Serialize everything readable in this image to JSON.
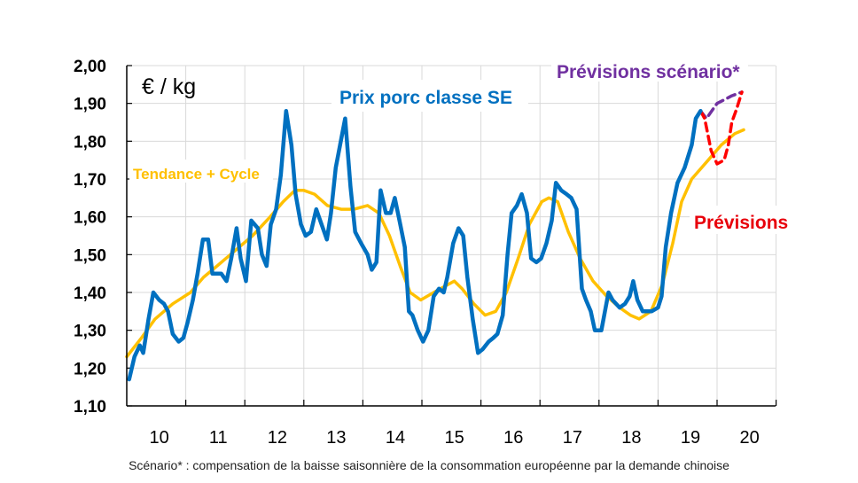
{
  "chart_data": {
    "type": "line",
    "unit_label": "€ / kg",
    "ylim": [
      1.1,
      2.0
    ],
    "xlim": [
      10,
      20.5
    ],
    "grid": true,
    "y_ticks": [
      "1,10",
      "1,20",
      "1,30",
      "1,40",
      "1,50",
      "1,60",
      "1,70",
      "1,80",
      "1,90",
      "2,00"
    ],
    "x_ticks": [
      "10",
      "11",
      "12",
      "13",
      "14",
      "15",
      "16",
      "17",
      "18",
      "19",
      "20"
    ],
    "footnote": "Scénario* : compensation de la baisse saisonnière de la consommation européenne par la demande chinoise",
    "series": [
      {
        "name": "Prix porc classe SE",
        "color": "#0070C0",
        "style": "solid",
        "x": [
          10.04,
          10.13,
          10.22,
          10.28,
          10.37,
          10.45,
          10.55,
          10.63,
          10.7,
          10.78,
          10.88,
          10.96,
          11.03,
          11.12,
          11.2,
          11.29,
          11.38,
          11.45,
          11.54,
          11.6,
          11.69,
          11.77,
          11.86,
          11.93,
          12.02,
          12.11,
          12.22,
          12.29,
          12.37,
          12.44,
          12.53,
          12.61,
          12.7,
          12.79,
          12.86,
          12.95,
          13.03,
          13.12,
          13.21,
          13.3,
          13.39,
          13.46,
          13.54,
          13.7,
          13.79,
          13.87,
          13.97,
          14.08,
          14.15,
          14.23,
          14.3,
          14.39,
          14.47,
          14.54,
          14.62,
          14.71,
          14.78,
          14.84,
          14.93,
          15.02,
          15.11,
          15.2,
          15.29,
          15.37,
          15.43,
          15.53,
          15.62,
          15.7,
          15.77,
          15.86,
          15.95,
          16.03,
          16.13,
          16.21,
          16.28,
          16.37,
          16.45,
          16.52,
          16.61,
          16.69,
          16.78,
          16.85,
          16.94,
          17.02,
          17.11,
          17.2,
          17.27,
          17.36,
          17.45,
          17.53,
          17.62,
          17.71,
          17.78,
          17.86,
          17.93,
          18.04,
          18.16,
          18.23,
          18.35,
          18.44,
          18.52,
          18.58,
          18.65,
          18.74,
          18.82,
          18.89,
          19.0,
          19.06,
          19.13,
          19.22,
          19.33,
          19.45,
          19.57,
          19.64,
          19.72
        ],
        "y": [
          1.17,
          1.23,
          1.26,
          1.24,
          1.33,
          1.4,
          1.38,
          1.37,
          1.35,
          1.29,
          1.27,
          1.28,
          1.32,
          1.38,
          1.45,
          1.54,
          1.54,
          1.45,
          1.45,
          1.45,
          1.43,
          1.49,
          1.57,
          1.49,
          1.43,
          1.59,
          1.57,
          1.5,
          1.47,
          1.58,
          1.62,
          1.71,
          1.88,
          1.79,
          1.66,
          1.58,
          1.55,
          1.56,
          1.62,
          1.58,
          1.54,
          1.61,
          1.73,
          1.86,
          1.68,
          1.56,
          1.53,
          1.5,
          1.46,
          1.48,
          1.67,
          1.61,
          1.61,
          1.65,
          1.59,
          1.52,
          1.35,
          1.34,
          1.3,
          1.27,
          1.3,
          1.39,
          1.41,
          1.4,
          1.44,
          1.53,
          1.57,
          1.55,
          1.44,
          1.33,
          1.24,
          1.25,
          1.27,
          1.28,
          1.29,
          1.34,
          1.5,
          1.61,
          1.63,
          1.66,
          1.61,
          1.49,
          1.48,
          1.49,
          1.53,
          1.59,
          1.69,
          1.67,
          1.66,
          1.65,
          1.62,
          1.41,
          1.38,
          1.35,
          1.3,
          1.3,
          1.4,
          1.38,
          1.36,
          1.37,
          1.39,
          1.43,
          1.38,
          1.35,
          1.35,
          1.35,
          1.36,
          1.39,
          1.52,
          1.61,
          1.69,
          1.73,
          1.79,
          1.86,
          1.88
        ]
      },
      {
        "name": "Tendance + Cycle",
        "color": "#FFC000",
        "style": "solid",
        "x": [
          10.0,
          10.25,
          10.48,
          10.78,
          11.08,
          11.3,
          11.53,
          11.83,
          12.13,
          12.43,
          12.65,
          12.85,
          13.0,
          13.18,
          13.4,
          13.63,
          13.85,
          14.08,
          14.27,
          14.45,
          14.63,
          14.8,
          14.98,
          15.2,
          15.43,
          15.55,
          15.68,
          15.88,
          16.07,
          16.25,
          16.43,
          16.63,
          16.82,
          17.03,
          17.15,
          17.3,
          17.48,
          17.68,
          17.9,
          18.13,
          18.35,
          18.53,
          18.68,
          18.88,
          19.07,
          19.25,
          19.4,
          19.57,
          19.85,
          20.07,
          20.3,
          20.45
        ],
        "y": [
          1.23,
          1.28,
          1.33,
          1.37,
          1.4,
          1.44,
          1.47,
          1.51,
          1.55,
          1.6,
          1.64,
          1.67,
          1.67,
          1.66,
          1.63,
          1.62,
          1.62,
          1.63,
          1.61,
          1.55,
          1.47,
          1.4,
          1.38,
          1.4,
          1.42,
          1.43,
          1.41,
          1.37,
          1.34,
          1.35,
          1.4,
          1.49,
          1.58,
          1.64,
          1.65,
          1.64,
          1.56,
          1.49,
          1.43,
          1.39,
          1.36,
          1.34,
          1.33,
          1.35,
          1.42,
          1.53,
          1.64,
          1.7,
          1.75,
          1.79,
          1.82,
          1.83
        ]
      },
      {
        "name": "Prévisions",
        "color": "#FF0000",
        "style": "dashed",
        "x": [
          19.72,
          19.79,
          19.9,
          20.0,
          20.12,
          20.19,
          20.25,
          20.33,
          20.42
        ],
        "y": [
          1.88,
          1.86,
          1.775,
          1.74,
          1.75,
          1.79,
          1.85,
          1.885,
          1.93
        ]
      },
      {
        "name": "Prévisions scénario*",
        "color": "#7030A0",
        "style": "dashed",
        "x": [
          19.72,
          19.82,
          20.0,
          20.25,
          20.42
        ],
        "y": [
          1.88,
          1.86,
          1.9,
          1.92,
          1.93
        ]
      }
    ]
  }
}
